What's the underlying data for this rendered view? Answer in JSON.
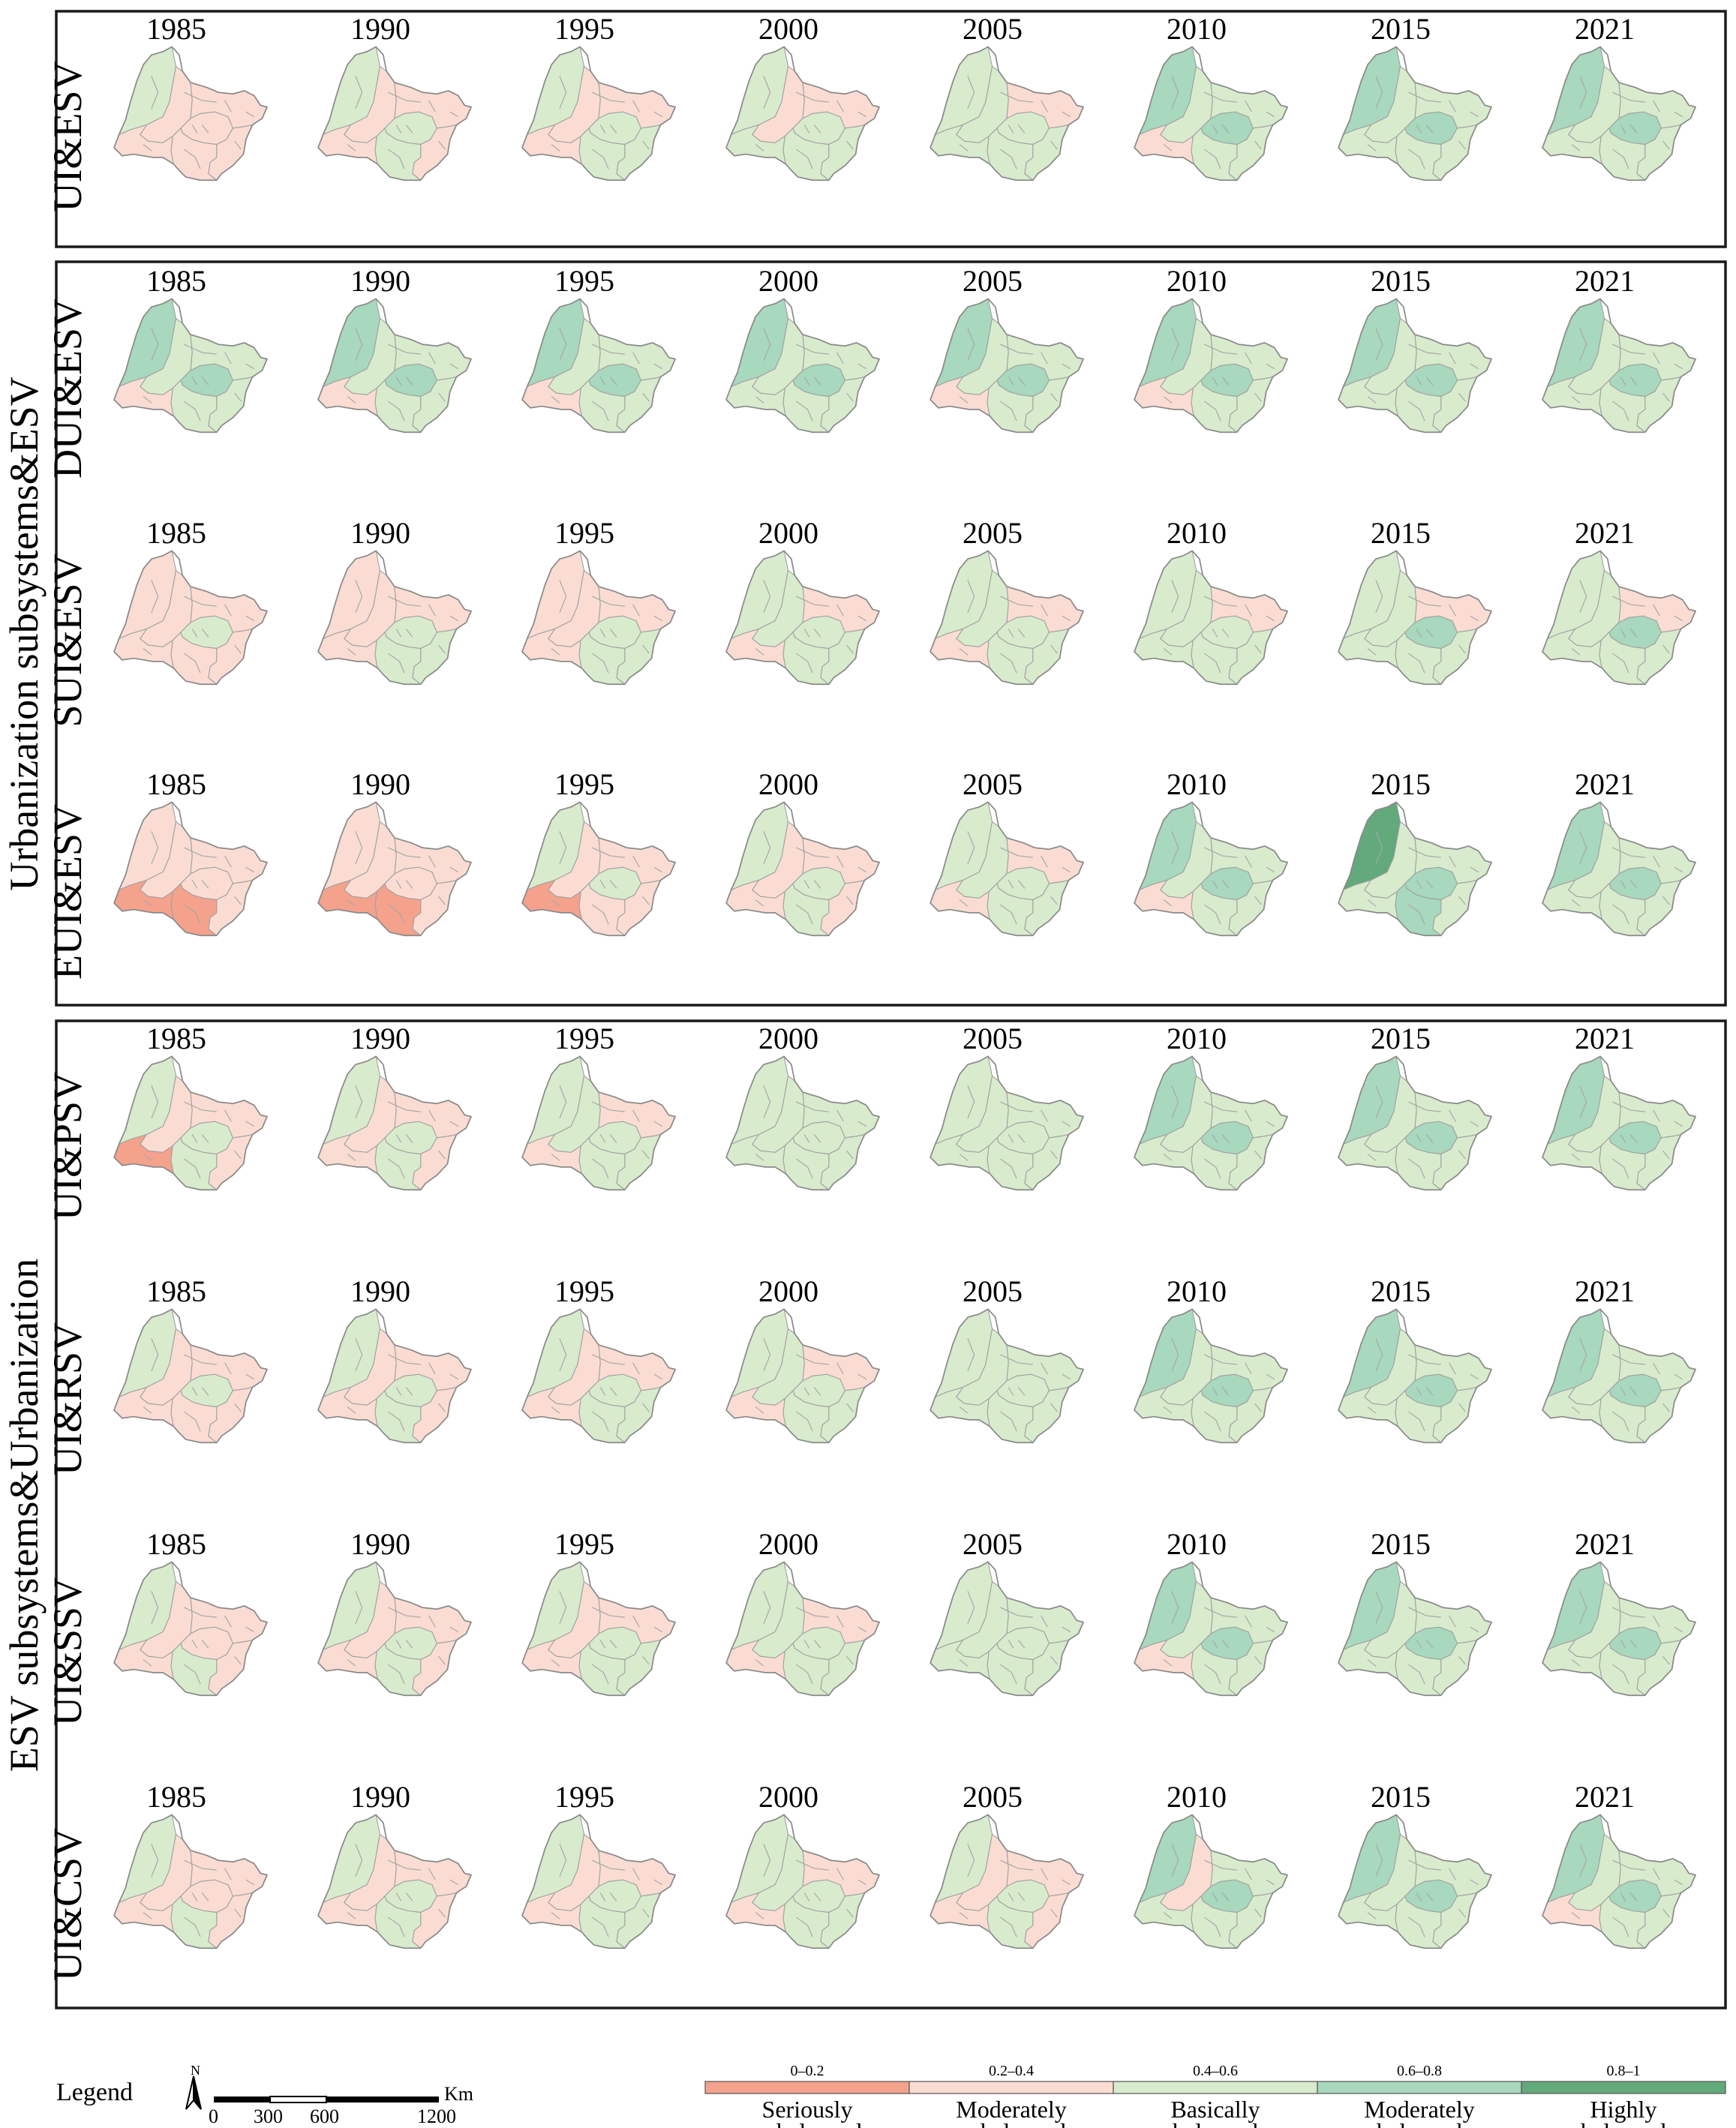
{
  "legend_title": "Legend",
  "north_arrow": {
    "icon": "north-arrow-icon",
    "label": "N"
  },
  "scale_bar": {
    "ticks": [
      "0",
      "300",
      "600",
      "1200"
    ],
    "unit": "Km"
  },
  "years": [
    "1985",
    "1990",
    "1995",
    "2000",
    "2005",
    "2010",
    "2015",
    "2021"
  ],
  "classes": [
    {
      "range": "0–0.2",
      "label_line1": "Seriously",
      "label_line2": "unbalanced",
      "color": "#f4a28c"
    },
    {
      "range": "0.2–0.4",
      "label_line1": "Moderately",
      "label_line2": "unbalanced",
      "color": "#fadcd3"
    },
    {
      "range": "0.4–0.6",
      "label_line1": "Basically",
      "label_line2": "balanced",
      "color": "#d8ebcd"
    },
    {
      "range": "0.6–0.8",
      "label_line1": "Moderately",
      "label_line2": "balanced",
      "color": "#a8d8bd"
    },
    {
      "range": "0.8–1",
      "label_line1": "Highly",
      "label_line2": "balanced",
      "color": "#62a97b"
    }
  ],
  "groups": [
    {
      "label": ""
    },
    {
      "label": "Urbanization subsystems&ESV"
    },
    {
      "label": "ESV subsystems&Urbanization"
    }
  ],
  "rows": [
    {
      "label": "UI&ESV",
      "group": 0
    },
    {
      "label": "DUI&ESV",
      "group": 1
    },
    {
      "label": "SUI&ESV",
      "group": 1
    },
    {
      "label": "EUI&ESV",
      "group": 1
    },
    {
      "label": "UI&PSV",
      "group": 2
    },
    {
      "label": "UI&RSV",
      "group": 2
    },
    {
      "label": "UI&SSV",
      "group": 2
    },
    {
      "label": "UI&CSV",
      "group": 2
    }
  ],
  "chart_data": {
    "type": "choropleth-map-grid",
    "value_scale": "coupling coordination class (1 = Seriously unbalanced … 5 = Highly balanced)",
    "region_order": [
      "northwest",
      "center",
      "southwest",
      "southeast",
      "east",
      "northeast",
      "south"
    ],
    "maps": [
      [
        [
          3,
          2,
          2,
          2,
          2,
          2,
          2
        ],
        [
          3,
          2,
          2,
          3,
          2,
          2,
          3
        ],
        [
          3,
          2,
          2,
          3,
          3,
          2,
          3
        ],
        [
          3,
          2,
          3,
          3,
          3,
          2,
          3
        ],
        [
          3,
          3,
          3,
          3,
          3,
          2,
          3
        ],
        [
          4,
          3,
          2,
          4,
          3,
          3,
          3
        ],
        [
          4,
          3,
          3,
          4,
          3,
          3,
          3
        ],
        [
          4,
          3,
          3,
          4,
          3,
          3,
          3
        ]
      ],
      [
        [
          4,
          3,
          2,
          4,
          3,
          3,
          3
        ],
        [
          4,
          3,
          2,
          4,
          3,
          3,
          3
        ],
        [
          4,
          3,
          2,
          4,
          3,
          3,
          3
        ],
        [
          4,
          3,
          3,
          4,
          3,
          3,
          3
        ],
        [
          4,
          3,
          2,
          4,
          3,
          3,
          3
        ],
        [
          4,
          3,
          2,
          4,
          3,
          3,
          3
        ],
        [
          4,
          3,
          3,
          4,
          3,
          3,
          3
        ],
        [
          4,
          3,
          3,
          4,
          3,
          3,
          3
        ]
      ],
      [
        [
          2,
          2,
          2,
          3,
          2,
          2,
          2
        ],
        [
          2,
          2,
          2,
          3,
          3,
          2,
          3
        ],
        [
          2,
          2,
          2,
          3,
          3,
          2,
          3
        ],
        [
          3,
          3,
          2,
          3,
          3,
          2,
          3
        ],
        [
          3,
          3,
          2,
          3,
          3,
          2,
          3
        ],
        [
          3,
          3,
          3,
          3,
          3,
          2,
          3
        ],
        [
          3,
          3,
          3,
          4,
          3,
          2,
          3
        ],
        [
          3,
          3,
          3,
          4,
          3,
          2,
          3
        ]
      ],
      [
        [
          2,
          2,
          1,
          2,
          2,
          2,
          1
        ],
        [
          2,
          2,
          1,
          2,
          2,
          2,
          1
        ],
        [
          3,
          2,
          1,
          3,
          2,
          2,
          2
        ],
        [
          3,
          2,
          2,
          3,
          2,
          2,
          3
        ],
        [
          3,
          3,
          2,
          3,
          3,
          2,
          3
        ],
        [
          4,
          3,
          2,
          4,
          3,
          3,
          3
        ],
        [
          5,
          3,
          3,
          4,
          3,
          3,
          4
        ],
        [
          4,
          3,
          3,
          4,
          3,
          3,
          3
        ]
      ],
      [
        [
          3,
          2,
          1,
          3,
          2,
          2,
          3
        ],
        [
          3,
          2,
          2,
          3,
          2,
          2,
          3
        ],
        [
          3,
          3,
          2,
          3,
          3,
          2,
          3
        ],
        [
          3,
          3,
          3,
          3,
          3,
          3,
          3
        ],
        [
          3,
          3,
          3,
          3,
          3,
          3,
          3
        ],
        [
          4,
          3,
          3,
          4,
          3,
          3,
          3
        ],
        [
          4,
          3,
          3,
          4,
          3,
          3,
          3
        ],
        [
          4,
          3,
          3,
          4,
          3,
          3,
          3
        ]
      ],
      [
        [
          3,
          2,
          2,
          3,
          2,
          2,
          2
        ],
        [
          3,
          2,
          2,
          3,
          2,
          2,
          3
        ],
        [
          3,
          2,
          2,
          3,
          3,
          2,
          3
        ],
        [
          3,
          3,
          2,
          3,
          3,
          2,
          3
        ],
        [
          3,
          3,
          3,
          3,
          3,
          3,
          3
        ],
        [
          4,
          3,
          3,
          4,
          3,
          3,
          3
        ],
        [
          4,
          3,
          3,
          4,
          3,
          3,
          3
        ],
        [
          4,
          3,
          3,
          4,
          3,
          3,
          3
        ]
      ],
      [
        [
          3,
          2,
          2,
          2,
          2,
          2,
          3
        ],
        [
          3,
          2,
          2,
          3,
          2,
          2,
          3
        ],
        [
          3,
          2,
          2,
          3,
          3,
          2,
          3
        ],
        [
          3,
          3,
          2,
          3,
          3,
          2,
          3
        ],
        [
          3,
          3,
          3,
          3,
          3,
          3,
          3
        ],
        [
          4,
          3,
          2,
          4,
          3,
          3,
          3
        ],
        [
          4,
          3,
          3,
          4,
          3,
          3,
          3
        ],
        [
          4,
          3,
          3,
          4,
          3,
          3,
          3
        ]
      ],
      [
        [
          3,
          2,
          2,
          2,
          2,
          2,
          3
        ],
        [
          3,
          2,
          2,
          3,
          2,
          2,
          3
        ],
        [
          3,
          2,
          2,
          3,
          3,
          2,
          3
        ],
        [
          3,
          3,
          2,
          3,
          3,
          2,
          3
        ],
        [
          3,
          2,
          2,
          3,
          2,
          2,
          3
        ],
        [
          4,
          2,
          3,
          4,
          3,
          3,
          3
        ],
        [
          4,
          3,
          3,
          4,
          3,
          3,
          3
        ],
        [
          4,
          3,
          2,
          4,
          3,
          3,
          3
        ]
      ]
    ]
  }
}
